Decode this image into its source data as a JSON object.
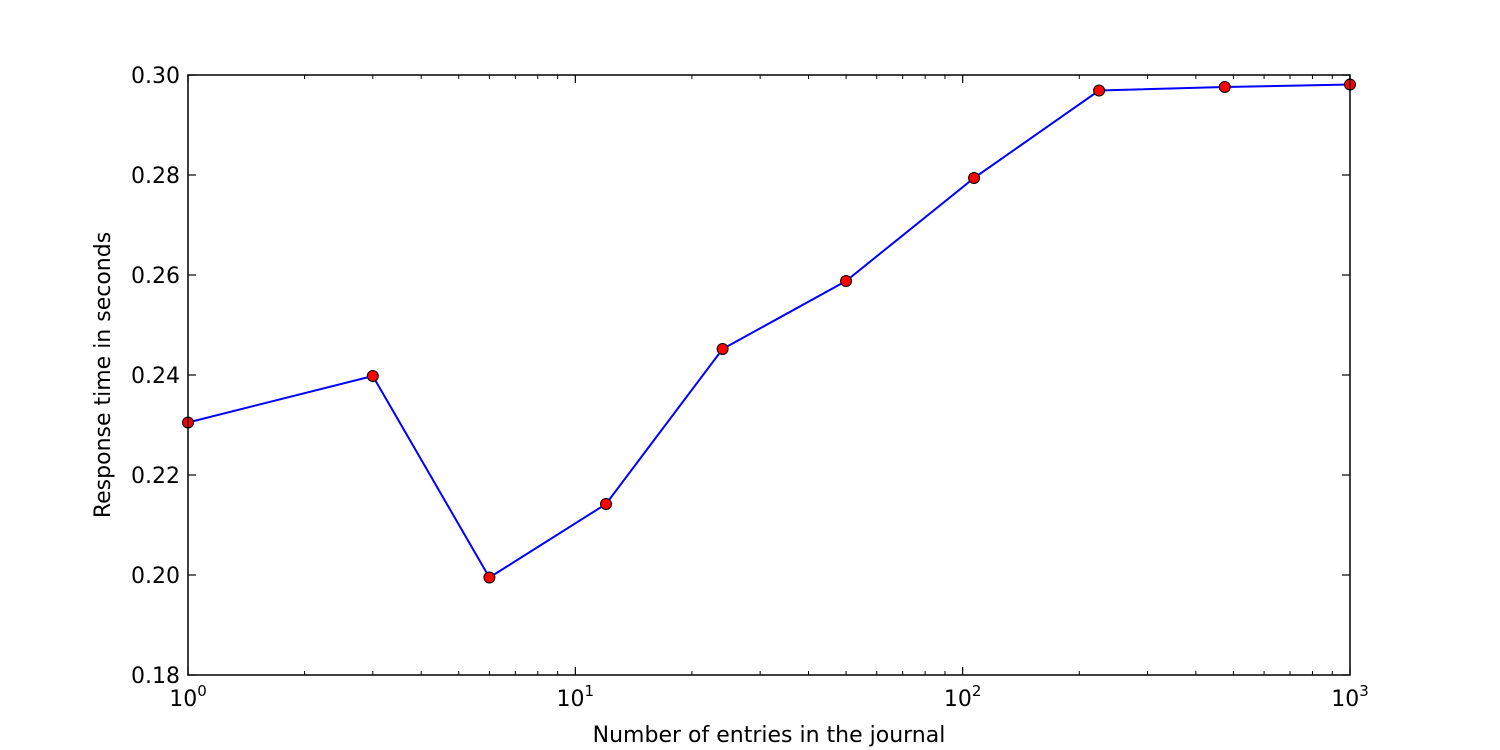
{
  "chart_data": {
    "type": "line",
    "title": "",
    "xlabel": "Number of entries in the journal",
    "ylabel": "Response time in seconds",
    "xscale": "log",
    "xlim": [
      1,
      1000
    ],
    "ylim": [
      0.18,
      0.3
    ],
    "grid": false,
    "legend": "none",
    "yticks": [
      "0.18",
      "0.20",
      "0.22",
      "0.24",
      "0.26",
      "0.28",
      "0.30"
    ],
    "xticks": [
      {
        "value": 1,
        "base": "10",
        "exp": "0"
      },
      {
        "value": 10,
        "base": "10",
        "exp": "1"
      },
      {
        "value": 100,
        "base": "10",
        "exp": "2"
      },
      {
        "value": 1000,
        "base": "10",
        "exp": "3"
      }
    ],
    "series": [
      {
        "line_color": "#0000ff",
        "marker_color": "#ff0000",
        "x": [
          1,
          3,
          6,
          12,
          24,
          50,
          107,
          225,
          475,
          1000
        ],
        "y": [
          0.2305,
          0.2398,
          0.1995,
          0.2142,
          0.2452,
          0.2588,
          0.2794,
          0.2969,
          0.2976,
          0.2981
        ]
      }
    ]
  }
}
